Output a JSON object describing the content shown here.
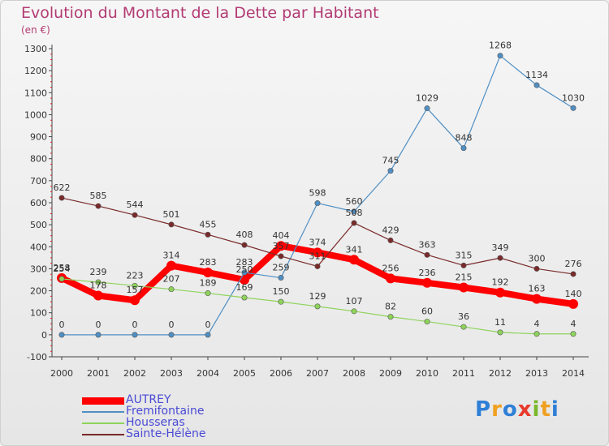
{
  "title": "Evolution du Montant de la Dette par Habitant",
  "unit": "(en €)",
  "logo": {
    "text": "Proxiti",
    "letters": [
      {
        "ch": "P",
        "color": "#2f7fd6"
      },
      {
        "ch": "r",
        "color": "#f0a020"
      },
      {
        "ch": "o",
        "color": "#2f7fd6"
      },
      {
        "ch": "x",
        "color": "#e83a2c"
      },
      {
        "ch": "i",
        "color": "#7ab82a"
      },
      {
        "ch": "t",
        "color": "#f0a020"
      },
      {
        "ch": "i",
        "color": "#2f7fd6"
      }
    ]
  },
  "chart_data": {
    "type": "line",
    "title": "Evolution du Montant de la Dette par Habitant",
    "ylabel": "(en €)",
    "ylim": [
      -100,
      1300
    ],
    "yticks": [
      -100,
      0,
      100,
      200,
      300,
      400,
      500,
      600,
      700,
      800,
      900,
      1000,
      1100,
      1200,
      1300
    ],
    "x": [
      "2000",
      "2001",
      "2002",
      "2003",
      "2004",
      "2005",
      "2006",
      "2007",
      "2008",
      "2009",
      "2010",
      "2011",
      "2012",
      "2013",
      "2014"
    ],
    "grid": false,
    "legend": "bottom-left",
    "series": [
      {
        "name": "AUTREY",
        "color": "#ff0000",
        "width": 8,
        "values": [
          258,
          178,
          157,
          314,
          283,
          250,
          404,
          374,
          341,
          256,
          236,
          215,
          192,
          163,
          140
        ],
        "labels": [
          "258",
          "178",
          "157",
          "314",
          "283",
          "250",
          "404",
          "374",
          "341",
          "256",
          "236",
          "215",
          "192",
          "163",
          "140"
        ]
      },
      {
        "name": "Fremifontaine",
        "color": "#4f8fc4",
        "width": 1.2,
        "values": [
          0,
          0,
          0,
          0,
          0,
          283,
          259,
          598,
          560,
          745,
          1029,
          848,
          1268,
          1134,
          1030
        ],
        "labels": [
          "0",
          "0",
          "0",
          "0",
          "0",
          "283",
          "259",
          "598",
          "560",
          "745",
          "1029",
          "848",
          "1268",
          "1134",
          "1030"
        ]
      },
      {
        "name": "Housseras",
        "color": "#8ed35a",
        "width": 1.2,
        "values": [
          254,
          239,
          223,
          207,
          189,
          169,
          150,
          129,
          107,
          82,
          60,
          36,
          11,
          4,
          4
        ],
        "labels": [
          "254",
          "239",
          "223",
          "207",
          "189",
          "169",
          "150",
          "129",
          "107",
          "82",
          "60",
          "36",
          "11",
          "4",
          "4"
        ]
      },
      {
        "name": "Sainte-Hélène",
        "color": "#7a2a2a",
        "width": 1.2,
        "values": [
          622,
          585,
          544,
          501,
          455,
          408,
          357,
          311,
          508,
          429,
          363,
          315,
          349,
          300,
          276
        ],
        "labels": [
          "622",
          "585",
          "544",
          "501",
          "455",
          "408",
          "357",
          "311",
          "508",
          "429",
          "363",
          "315",
          "349",
          "300",
          "276"
        ]
      }
    ]
  }
}
